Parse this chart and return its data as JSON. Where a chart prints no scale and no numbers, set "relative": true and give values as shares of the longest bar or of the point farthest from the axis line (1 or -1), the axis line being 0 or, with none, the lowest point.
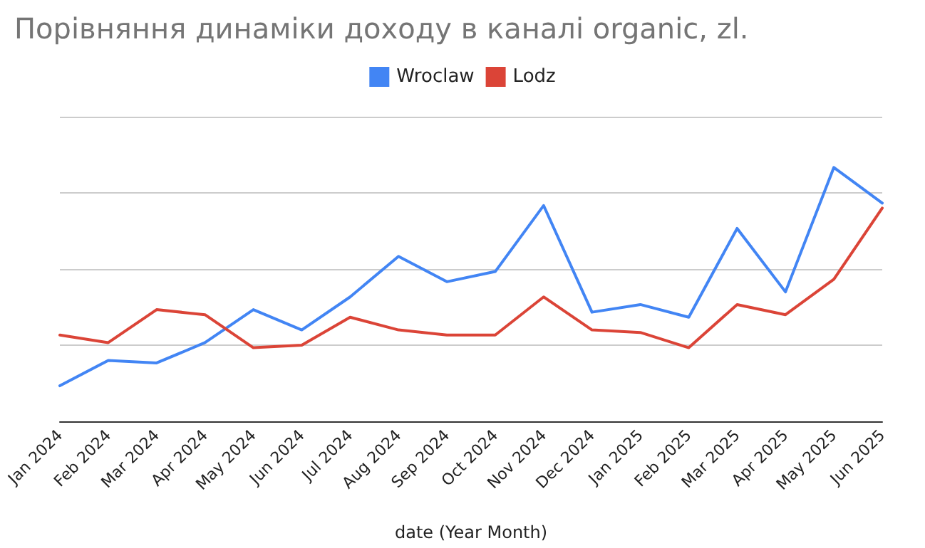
{
  "chart_data": {
    "type": "line",
    "title": "Порівняння динаміки доходу в каналі organic, zl.",
    "xlabel": "date (Year Month)",
    "relative": true,
    "grid": "y",
    "legend": "top",
    "marker": "none",
    "categories": [
      "Jan 2024",
      "Feb 2024",
      "Mar 2024",
      "Apr 2024",
      "May 2024",
      "Jun 2024",
      "Jul 2024",
      "Aug 2024",
      "Sep 2024",
      "Oct 2024",
      "Nov 2024",
      "Dec 2024",
      "Jan 2025",
      "Feb 2025",
      "Mar 2025",
      "Apr 2025",
      "May 2025",
      "Jun 2025"
    ],
    "series": [
      {
        "name": "Wroclaw",
        "color": "#4285f4",
        "values": [
          0.14,
          0.24,
          0.23,
          0.31,
          0.44,
          0.36,
          0.49,
          0.65,
          0.55,
          0.59,
          0.85,
          0.43,
          0.46,
          0.41,
          0.76,
          0.51,
          1,
          0.86
        ]
      },
      {
        "name": "Lodz",
        "color": "#db4437",
        "values": [
          0.34,
          0.31,
          0.44,
          0.42,
          0.29,
          0.3,
          0.41,
          0.36,
          0.34,
          0.34,
          0.49,
          0.36,
          0.35,
          0.29,
          0.46,
          0.42,
          0.56,
          0.84
        ]
      }
    ]
  }
}
